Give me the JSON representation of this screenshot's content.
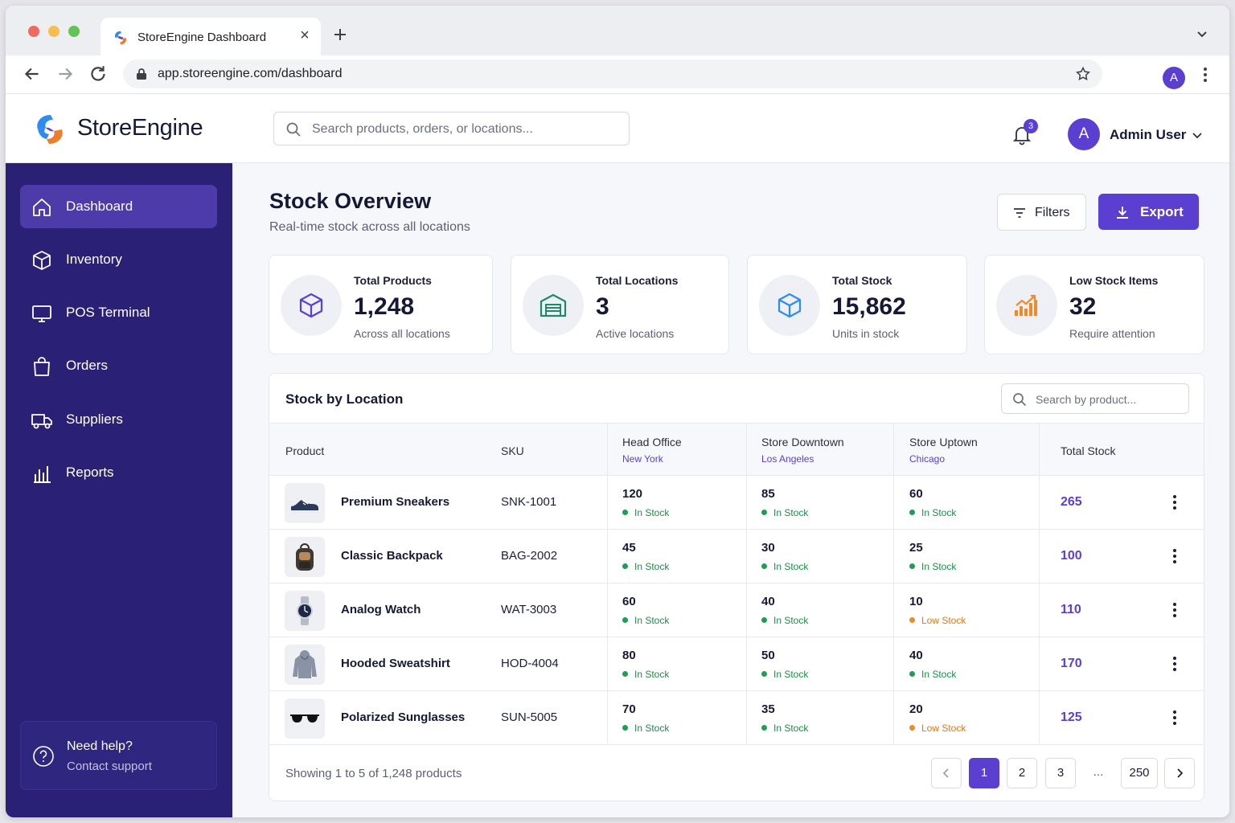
{
  "browser": {
    "tab_title": "StoreEngine Dashboard",
    "url": "app.storeengine.com/dashboard",
    "profile_initial": "A"
  },
  "header": {
    "brand": "StoreEngine",
    "search_placeholder": "Search products, orders, or locations...",
    "notification_count": "3",
    "user_initial": "A",
    "user_name": "Admin User"
  },
  "sidebar": {
    "items": [
      {
        "label": "Dashboard",
        "icon": "home-icon",
        "active": true
      },
      {
        "label": "Inventory",
        "icon": "box-icon"
      },
      {
        "label": "POS Terminal",
        "icon": "monitor-icon"
      },
      {
        "label": "Orders",
        "icon": "shopping-bag-icon"
      },
      {
        "label": "Suppliers",
        "icon": "truck-icon"
      },
      {
        "label": "Reports",
        "icon": "bar-chart-icon"
      }
    ],
    "help_title": "Need help?",
    "help_sub": "Contact support"
  },
  "page": {
    "title": "Stock Overview",
    "subtitle": "Real-time stock across all locations",
    "filters_label": "Filters",
    "export_label": "Export"
  },
  "stats": [
    {
      "label": "Total Products",
      "value": "1,248",
      "sub": "Across all locations",
      "icon": "cube-icon"
    },
    {
      "label": "Total Locations",
      "value": "3",
      "sub": "Active locations",
      "icon": "warehouse-icon"
    },
    {
      "label": "Total Stock",
      "value": "15,862",
      "sub": "Units in stock",
      "icon": "box-icon"
    },
    {
      "label": "Low Stock Items",
      "value": "32",
      "sub": "Require attention",
      "icon": "trend-chart-icon"
    }
  ],
  "table": {
    "title": "Stock by Location",
    "search_placeholder": "Search by product...",
    "columns": {
      "product": "Product",
      "sku": "SKU",
      "loc1": "Head Office",
      "loc1_city": "New York",
      "loc2": "Store Downtown",
      "loc2_city": "Los Angeles",
      "loc3": "Store Uptown",
      "loc3_city": "Chicago",
      "total": "Total Stock"
    },
    "rows": [
      {
        "name": "Premium Sneakers",
        "sku": "SNK-1001",
        "q1": "120",
        "s1": "In Stock",
        "q2": "85",
        "s2": "In Stock",
        "q3": "60",
        "s3": "In Stock",
        "total": "265",
        "thumb": "sneaker-icon"
      },
      {
        "name": "Classic Backpack",
        "sku": "BAG-2002",
        "q1": "45",
        "s1": "In Stock",
        "q2": "30",
        "s2": "In Stock",
        "q3": "25",
        "s3": "In Stock",
        "total": "100",
        "thumb": "backpack-icon"
      },
      {
        "name": "Analog Watch",
        "sku": "WAT-3003",
        "q1": "60",
        "s1": "In Stock",
        "q2": "40",
        "s2": "In Stock",
        "q3": "10",
        "s3": "Low Stock",
        "total": "110",
        "thumb": "watch-icon"
      },
      {
        "name": "Hooded Sweatshirt",
        "sku": "HOD-4004",
        "q1": "80",
        "s1": "In Stock",
        "q2": "50",
        "s2": "In Stock",
        "q3": "40",
        "s3": "In Stock",
        "total": "170",
        "thumb": "hoodie-icon"
      },
      {
        "name": "Polarized Sunglasses",
        "sku": "SUN-5005",
        "q1": "70",
        "s1": "In Stock",
        "q2": "35",
        "s2": "In Stock",
        "q3": "20",
        "s3": "Low Stock",
        "total": "125",
        "thumb": "sunglasses-icon"
      }
    ],
    "footer": "Showing 1 to 5 of 1,248 products",
    "pages": [
      "1",
      "2",
      "3",
      "...",
      "250"
    ]
  },
  "colors": {
    "accent": "#5b3fd0",
    "sidebar": "#2a2177",
    "in_stock": "#1f9d55",
    "low_stock": "#ee8a2a"
  }
}
